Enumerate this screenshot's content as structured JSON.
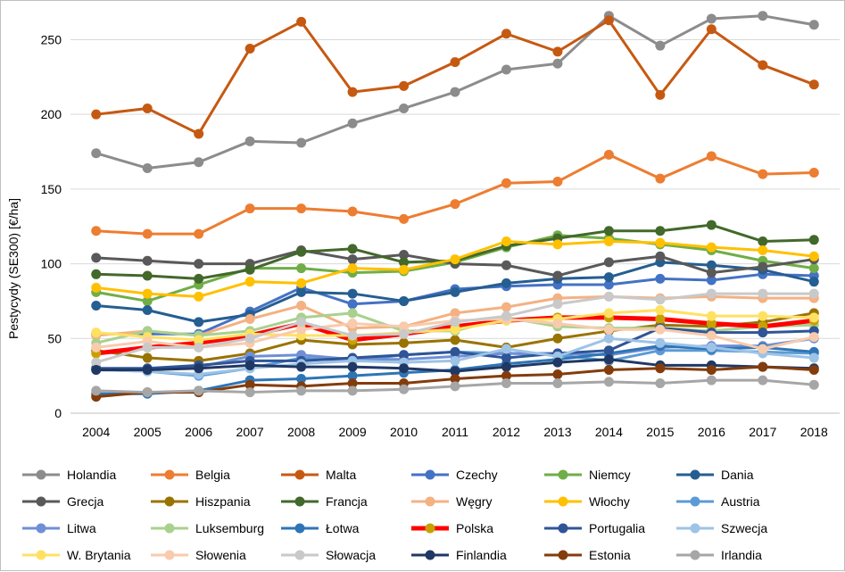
{
  "chart_data": {
    "type": "line",
    "title": "",
    "xlabel": "",
    "ylabel": "Pestycydy (SE300) [€/ha]",
    "x": [
      "2004",
      "2005",
      "2006",
      "2007",
      "2008",
      "2009",
      "2010",
      "2011",
      "2012",
      "2013",
      "2014",
      "2015",
      "2016",
      "2017",
      "2018"
    ],
    "yticks": [
      "0",
      "50",
      "100",
      "150",
      "200",
      "250"
    ],
    "ylim": [
      0,
      270
    ],
    "grid": "horizontal",
    "legend": "bottom",
    "series": [
      {
        "name": "Holandia",
        "color": "#8c8c8c",
        "values": [
          174,
          164,
          168,
          182,
          181,
          194,
          204,
          215,
          230,
          234,
          266,
          246,
          264,
          266,
          260
        ]
      },
      {
        "name": "Belgia",
        "color": "#ed7d31",
        "values": [
          122,
          120,
          120,
          137,
          137,
          135,
          130,
          140,
          154,
          155,
          173,
          157,
          172,
          160,
          161
        ]
      },
      {
        "name": "Malta",
        "color": "#c65911",
        "values": [
          200,
          204,
          187,
          244,
          262,
          215,
          219,
          235,
          254,
          242,
          263,
          213,
          257,
          233,
          220
        ]
      },
      {
        "name": "Czechy",
        "color": "#4472c4",
        "values": [
          53,
          53,
          53,
          68,
          84,
          73,
          75,
          83,
          85,
          86,
          86,
          90,
          89,
          93,
          92
        ]
      },
      {
        "name": "Niemcy",
        "color": "#70ad47",
        "values": [
          81,
          75,
          86,
          97,
          97,
          94,
          95,
          101,
          111,
          119,
          117,
          113,
          109,
          102,
          97
        ]
      },
      {
        "name": "Dania",
        "color": "#255e91",
        "values": [
          72,
          69,
          61,
          66,
          81,
          80,
          75,
          81,
          87,
          90,
          91,
          101,
          99,
          96,
          88
        ]
      },
      {
        "name": "Grecja",
        "color": "#595959",
        "values": [
          104,
          102,
          100,
          100,
          109,
          103,
          106,
          100,
          99,
          92,
          101,
          105,
          94,
          98,
          103
        ]
      },
      {
        "name": "Hiszpania",
        "color": "#997300",
        "values": [
          42,
          37,
          35,
          40,
          49,
          46,
          47,
          49,
          44,
          50,
          55,
          59,
          58,
          61,
          67
        ]
      },
      {
        "name": "Francja",
        "color": "#43682b",
        "values": [
          93,
          92,
          90,
          96,
          108,
          110,
          101,
          102,
          112,
          117,
          122,
          122,
          126,
          115,
          116
        ]
      },
      {
        "name": "Węgry",
        "color": "#f4b183",
        "values": [
          52,
          55,
          52,
          63,
          72,
          57,
          58,
          67,
          71,
          77,
          78,
          77,
          78,
          77,
          77
        ]
      },
      {
        "name": "Włochy",
        "color": "#ffc000",
        "values": [
          84,
          80,
          78,
          88,
          87,
          97,
          96,
          103,
          115,
          113,
          115,
          114,
          111,
          109,
          105
        ]
      },
      {
        "name": "Austria",
        "color": "#5b9bd5",
        "values": [
          29,
          28,
          25,
          30,
          37,
          35,
          39,
          41,
          40,
          39,
          35,
          42,
          42,
          41,
          40
        ]
      },
      {
        "name": "Litwa",
        "color": "#6f8fd6",
        "values": [
          30,
          29,
          31,
          38,
          39,
          36,
          36,
          38,
          40,
          40,
          39,
          44,
          45,
          45,
          50
        ]
      },
      {
        "name": "Luksemburg",
        "color": "#a9d18e",
        "values": [
          47,
          55,
          52,
          55,
          64,
          67,
          55,
          55,
          64,
          58,
          57,
          57,
          55,
          58,
          59
        ]
      },
      {
        "name": "Łotwa",
        "color": "#2e75b6",
        "values": [
          13,
          13,
          15,
          22,
          23,
          25,
          27,
          29,
          33,
          36,
          40,
          45,
          43,
          44,
          41
        ]
      },
      {
        "name": "Polska",
        "color": "#ff0000",
        "values": [
          40,
          44,
          47,
          52,
          60,
          49,
          53,
          58,
          62,
          64,
          64,
          63,
          60,
          58,
          62
        ]
      },
      {
        "name": "Portugalia",
        "color": "#2f5597",
        "values": [
          30,
          30,
          32,
          35,
          35,
          37,
          39,
          41,
          37,
          40,
          42,
          57,
          54,
          54,
          55
        ]
      },
      {
        "name": "Szwecja",
        "color": "#9dc3e6",
        "values": [
          29,
          28,
          26,
          30,
          33,
          35,
          34,
          35,
          43,
          38,
          50,
          47,
          44,
          40,
          37
        ]
      },
      {
        "name": "W. Brytania",
        "color": "#ffe162",
        "values": [
          54,
          51,
          49,
          53,
          52,
          52,
          54,
          56,
          62,
          63,
          67,
          69,
          65,
          65,
          64
        ]
      },
      {
        "name": "Słowenia",
        "color": "#f8cbad",
        "values": [
          44,
          48,
          44,
          47,
          56,
          60,
          58,
          62,
          63,
          60,
          56,
          56,
          52,
          43,
          51
        ]
      },
      {
        "name": "Słowacja",
        "color": "#c9c9c9",
        "values": [
          34,
          44,
          44,
          50,
          61,
          52,
          53,
          61,
          65,
          73,
          78,
          76,
          80,
          80,
          80
        ]
      },
      {
        "name": "Finlandia",
        "color": "#203864",
        "values": [
          29,
          29,
          30,
          32,
          31,
          31,
          30,
          28,
          31,
          34,
          36,
          32,
          32,
          31,
          30
        ]
      },
      {
        "name": "Estonia",
        "color": "#843c0c",
        "values": [
          11,
          14,
          14,
          19,
          18,
          20,
          20,
          23,
          25,
          26,
          29,
          30,
          29,
          31,
          29
        ]
      },
      {
        "name": "Irlandia",
        "color": "#a6a6a6",
        "values": [
          15,
          14,
          15,
          14,
          15,
          15,
          16,
          18,
          20,
          20,
          21,
          20,
          22,
          22,
          19
        ]
      }
    ]
  }
}
